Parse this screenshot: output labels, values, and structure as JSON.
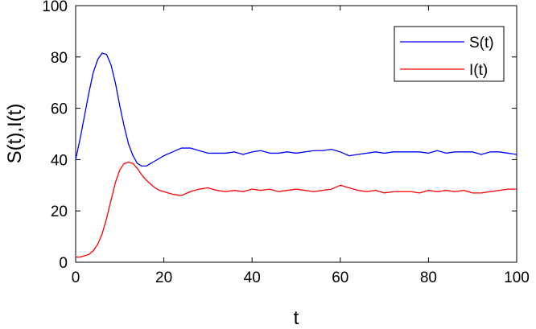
{
  "chart_data": {
    "type": "line",
    "title": "",
    "xlabel": "t",
    "ylabel": "S(t),I(t)",
    "xlim": [
      0,
      100
    ],
    "ylim": [
      0,
      100
    ],
    "xticks": [
      0,
      20,
      40,
      60,
      80,
      100
    ],
    "yticks": [
      0,
      20,
      40,
      60,
      80,
      100
    ],
    "xtick_labels": [
      "0",
      "20",
      "40",
      "60",
      "80",
      "100"
    ],
    "ytick_labels": [
      "0",
      "20",
      "40",
      "60",
      "80",
      "100"
    ],
    "grid": false,
    "legend_position": "top-right",
    "series": [
      {
        "name": "S(t)",
        "color": "#0000ff",
        "x": [
          0,
          1,
          2,
          3,
          4,
          5,
          6,
          7,
          8,
          9,
          10,
          11,
          12,
          13,
          14,
          15,
          16,
          17,
          18,
          19,
          20,
          22,
          24,
          26,
          28,
          30,
          32,
          34,
          36,
          38,
          40,
          42,
          44,
          46,
          48,
          50,
          52,
          54,
          56,
          58,
          60,
          62,
          64,
          66,
          68,
          70,
          72,
          74,
          76,
          78,
          80,
          82,
          84,
          86,
          88,
          90,
          92,
          94,
          96,
          98,
          100
        ],
        "values": [
          40,
          48,
          57,
          66,
          74,
          79,
          81.5,
          81,
          77,
          70,
          61,
          53,
          46,
          41.5,
          38.5,
          37.5,
          37.5,
          38.5,
          39.5,
          40.5,
          41.5,
          43,
          44.5,
          44.5,
          43.5,
          42.5,
          42.5,
          42.5,
          43,
          42,
          43,
          43.5,
          42.5,
          42.5,
          43,
          42.5,
          43,
          43.5,
          43.5,
          44,
          43,
          41.5,
          42,
          42.5,
          43,
          42.5,
          43,
          43,
          43,
          43,
          42.5,
          43.5,
          42.5,
          43,
          43,
          43,
          42,
          43,
          43,
          42.5,
          42
        ]
      },
      {
        "name": "I(t)",
        "color": "#ff0000",
        "x": [
          0,
          1,
          2,
          3,
          4,
          5,
          6,
          7,
          8,
          9,
          10,
          11,
          12,
          13,
          14,
          15,
          16,
          17,
          18,
          19,
          20,
          22,
          24,
          26,
          28,
          30,
          32,
          34,
          36,
          38,
          40,
          42,
          44,
          46,
          48,
          50,
          52,
          54,
          56,
          58,
          60,
          62,
          64,
          66,
          68,
          70,
          72,
          74,
          76,
          78,
          80,
          82,
          84,
          86,
          88,
          90,
          92,
          94,
          96,
          98,
          100
        ],
        "values": [
          2,
          2,
          2.5,
          3,
          4.5,
          7,
          11,
          17,
          24,
          31,
          36,
          38.5,
          39,
          38.5,
          36.5,
          34,
          32,
          30.5,
          29,
          28,
          27.5,
          26.5,
          26,
          27.5,
          28.5,
          29,
          28,
          27.5,
          28,
          27.5,
          28.5,
          28,
          28.5,
          27.5,
          28,
          28.5,
          28,
          27.5,
          28,
          28.5,
          30,
          29,
          28,
          27.5,
          28,
          27,
          27.5,
          27.5,
          27.5,
          27,
          28,
          27.5,
          28,
          27.5,
          28,
          27,
          27,
          27.5,
          28,
          28.5,
          28.5
        ]
      }
    ]
  }
}
